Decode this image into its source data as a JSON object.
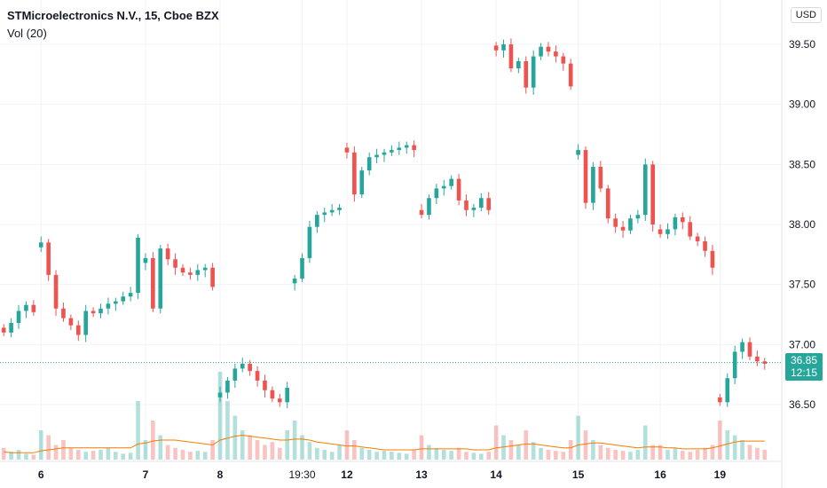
{
  "header": {
    "title": "STMicroelectronics N.V., 15, Cboe BZX",
    "volume_label": "Vol (20)",
    "currency": "USD"
  },
  "last_price": {
    "price": "36.85",
    "countdown": "12:15"
  },
  "colors": {
    "up": "#26a69a",
    "down": "#ef5350",
    "vol_ma": "#f57c00",
    "grid": "#f0f3fa"
  },
  "chart_data": {
    "type": "candlestick",
    "y_axis_ticks": [
      "39.50",
      "39.00",
      "38.50",
      "38.00",
      "37.50",
      "37.00",
      "36.50"
    ],
    "ylim": [
      36.0,
      39.9
    ],
    "x_axis_ticks": [
      "6",
      "7",
      "8",
      "19:30",
      "12",
      "13",
      "14",
      "15",
      "16",
      "19"
    ],
    "last_price": 36.85,
    "price_path": [
      37.1,
      37.18,
      37.28,
      37.33,
      37.27,
      37.85,
      37.58,
      37.3,
      37.22,
      37.16,
      37.08,
      37.28,
      37.26,
      37.3,
      37.34,
      37.36,
      37.4,
      37.43,
      37.89,
      37.72,
      37.3,
      37.8,
      37.71,
      37.64,
      37.6,
      37.58,
      37.62,
      37.64,
      37.48,
      36.6,
      36.7,
      36.8,
      36.84,
      36.78,
      36.7,
      36.62,
      36.55,
      36.52,
      36.64,
      37.55,
      37.72,
      37.98,
      38.08,
      38.1,
      38.12,
      38.14,
      38.6,
      38.25,
      38.45,
      38.56,
      38.58,
      38.6,
      38.62,
      38.64,
      38.66,
      38.62,
      38.08,
      38.22,
      38.3,
      38.32,
      38.38,
      38.2,
      38.12,
      38.14,
      38.22,
      38.12,
      39.45,
      39.5,
      39.3,
      39.36,
      39.14,
      39.4,
      39.48,
      39.44,
      39.4,
      39.34,
      39.15,
      38.62,
      38.18,
      38.48,
      38.3,
      38.05,
      37.98,
      37.95,
      38.05,
      38.08,
      38.5,
      38.0,
      37.92,
      37.96,
      38.06,
      38.02,
      37.9,
      37.86,
      37.78,
      37.64,
      36.52,
      36.72,
      36.94,
      37.02,
      36.9,
      36.86,
      36.84
    ],
    "volume": [
      12,
      8,
      10,
      6,
      5,
      30,
      25,
      15,
      20,
      12,
      10,
      8,
      9,
      10,
      12,
      8,
      6,
      7,
      60,
      20,
      40,
      25,
      15,
      12,
      10,
      8,
      9,
      8,
      20,
      90,
      60,
      45,
      30,
      25,
      20,
      15,
      18,
      12,
      30,
      40,
      25,
      18,
      12,
      10,
      8,
      15,
      30,
      20,
      12,
      10,
      8,
      9,
      8,
      7,
      6,
      10,
      25,
      15,
      12,
      10,
      9,
      12,
      8,
      7,
      6,
      8,
      35,
      25,
      20,
      15,
      30,
      18,
      12,
      10,
      9,
      8,
      20,
      45,
      30,
      20,
      15,
      12,
      10,
      9,
      8,
      10,
      35,
      15,
      15,
      10,
      12,
      9,
      8,
      10,
      12,
      15,
      40,
      30,
      25,
      20,
      15,
      12,
      10
    ],
    "volume_ma": [
      8,
      7,
      7,
      7,
      7,
      9,
      10,
      11,
      12,
      12,
      12,
      12,
      12,
      12,
      12,
      12,
      12,
      12,
      16,
      17,
      19,
      20,
      20,
      20,
      19,
      18,
      17,
      16,
      15,
      20,
      22,
      24,
      25,
      24,
      23,
      22,
      21,
      20,
      20,
      21,
      21,
      20,
      18,
      17,
      16,
      15,
      14,
      14,
      13,
      12,
      11,
      10,
      10,
      10,
      10,
      10,
      11,
      11,
      11,
      11,
      11,
      11,
      11,
      10,
      10,
      10,
      12,
      13,
      14,
      15,
      16,
      16,
      15,
      14,
      13,
      12,
      12,
      15,
      16,
      17,
      17,
      16,
      15,
      14,
      13,
      12,
      13,
      13,
      13,
      12,
      12,
      11,
      11,
      11,
      11,
      12,
      14,
      16,
      18,
      19,
      19,
      19,
      19
    ],
    "session_starts": [
      0,
      5,
      19,
      29,
      39,
      46,
      56,
      66,
      77,
      88,
      96
    ]
  }
}
